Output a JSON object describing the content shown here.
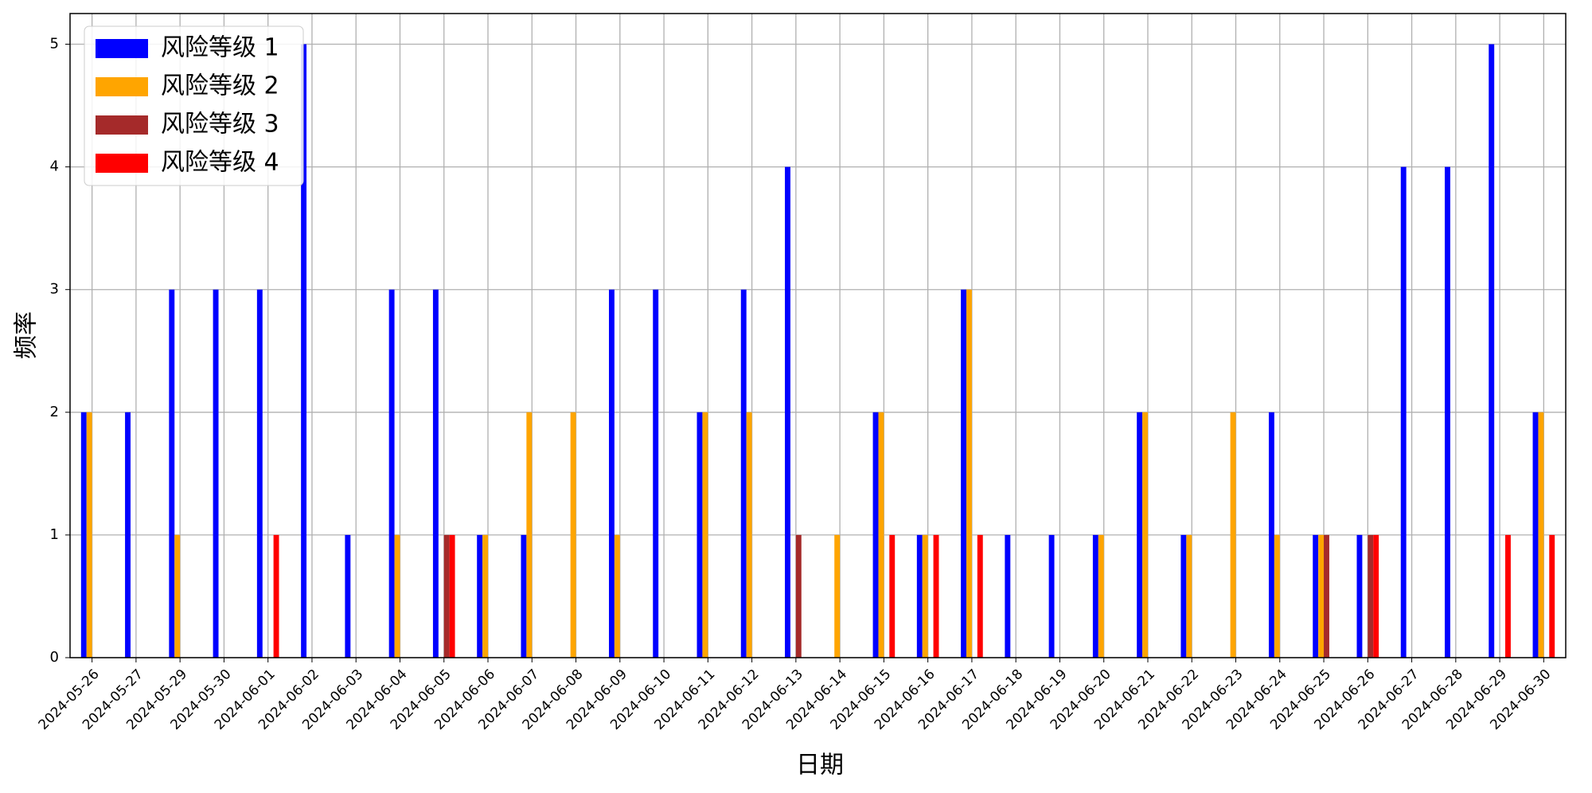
{
  "chart_data": {
    "type": "bar",
    "x_label": "日期",
    "y_label": "频率",
    "categories": [
      "2024-05-26",
      "2024-05-27",
      "2024-05-29",
      "2024-05-30",
      "2024-06-01",
      "2024-06-02",
      "2024-06-03",
      "2024-06-04",
      "2024-06-05",
      "2024-06-06",
      "2024-06-07",
      "2024-06-08",
      "2024-06-09",
      "2024-06-10",
      "2024-06-11",
      "2024-06-12",
      "2024-06-13",
      "2024-06-14",
      "2024-06-15",
      "2024-06-16",
      "2024-06-17",
      "2024-06-18",
      "2024-06-19",
      "2024-06-20",
      "2024-06-21",
      "2024-06-22",
      "2024-06-23",
      "2024-06-24",
      "2024-06-25",
      "2024-06-26",
      "2024-06-27",
      "2024-06-28",
      "2024-06-29",
      "2024-06-30"
    ],
    "series": [
      {
        "name": "风险等级 1",
        "color": "#0000ff",
        "values": [
          2,
          2,
          3,
          3,
          3,
          5,
          1,
          3,
          3,
          1,
          1,
          0,
          3,
          3,
          2,
          3,
          4,
          0,
          2,
          1,
          3,
          1,
          1,
          1,
          2,
          1,
          0,
          2,
          1,
          1,
          4,
          4,
          5,
          2
        ]
      },
      {
        "name": "风险等级 2",
        "color": "#ffa500",
        "values": [
          2,
          0,
          1,
          0,
          0,
          0,
          0,
          1,
          0,
          1,
          2,
          2,
          1,
          0,
          2,
          2,
          0,
          1,
          2,
          1,
          3,
          0,
          0,
          1,
          2,
          1,
          2,
          1,
          1,
          0,
          0,
          0,
          0,
          2
        ]
      },
      {
        "name": "风险等级 3",
        "color": "#a52a2a",
        "values": [
          0,
          0,
          0,
          0,
          0,
          0,
          0,
          0,
          1,
          0,
          0,
          0,
          0,
          0,
          0,
          0,
          1,
          0,
          0,
          0,
          0,
          0,
          0,
          0,
          0,
          0,
          0,
          0,
          1,
          1,
          0,
          0,
          0,
          0
        ]
      },
      {
        "name": "风险等级 4",
        "color": "#ff0000",
        "values": [
          0,
          0,
          0,
          0,
          1,
          0,
          0,
          0,
          1,
          0,
          0,
          0,
          0,
          0,
          0,
          0,
          0,
          0,
          1,
          1,
          1,
          0,
          0,
          0,
          0,
          0,
          0,
          0,
          0,
          1,
          0,
          0,
          1,
          1
        ]
      }
    ],
    "ylim": [
      0,
      5.25
    ],
    "yticks": [
      0,
      1,
      2,
      3,
      4,
      5
    ],
    "grid": true,
    "legend": "upper left"
  }
}
